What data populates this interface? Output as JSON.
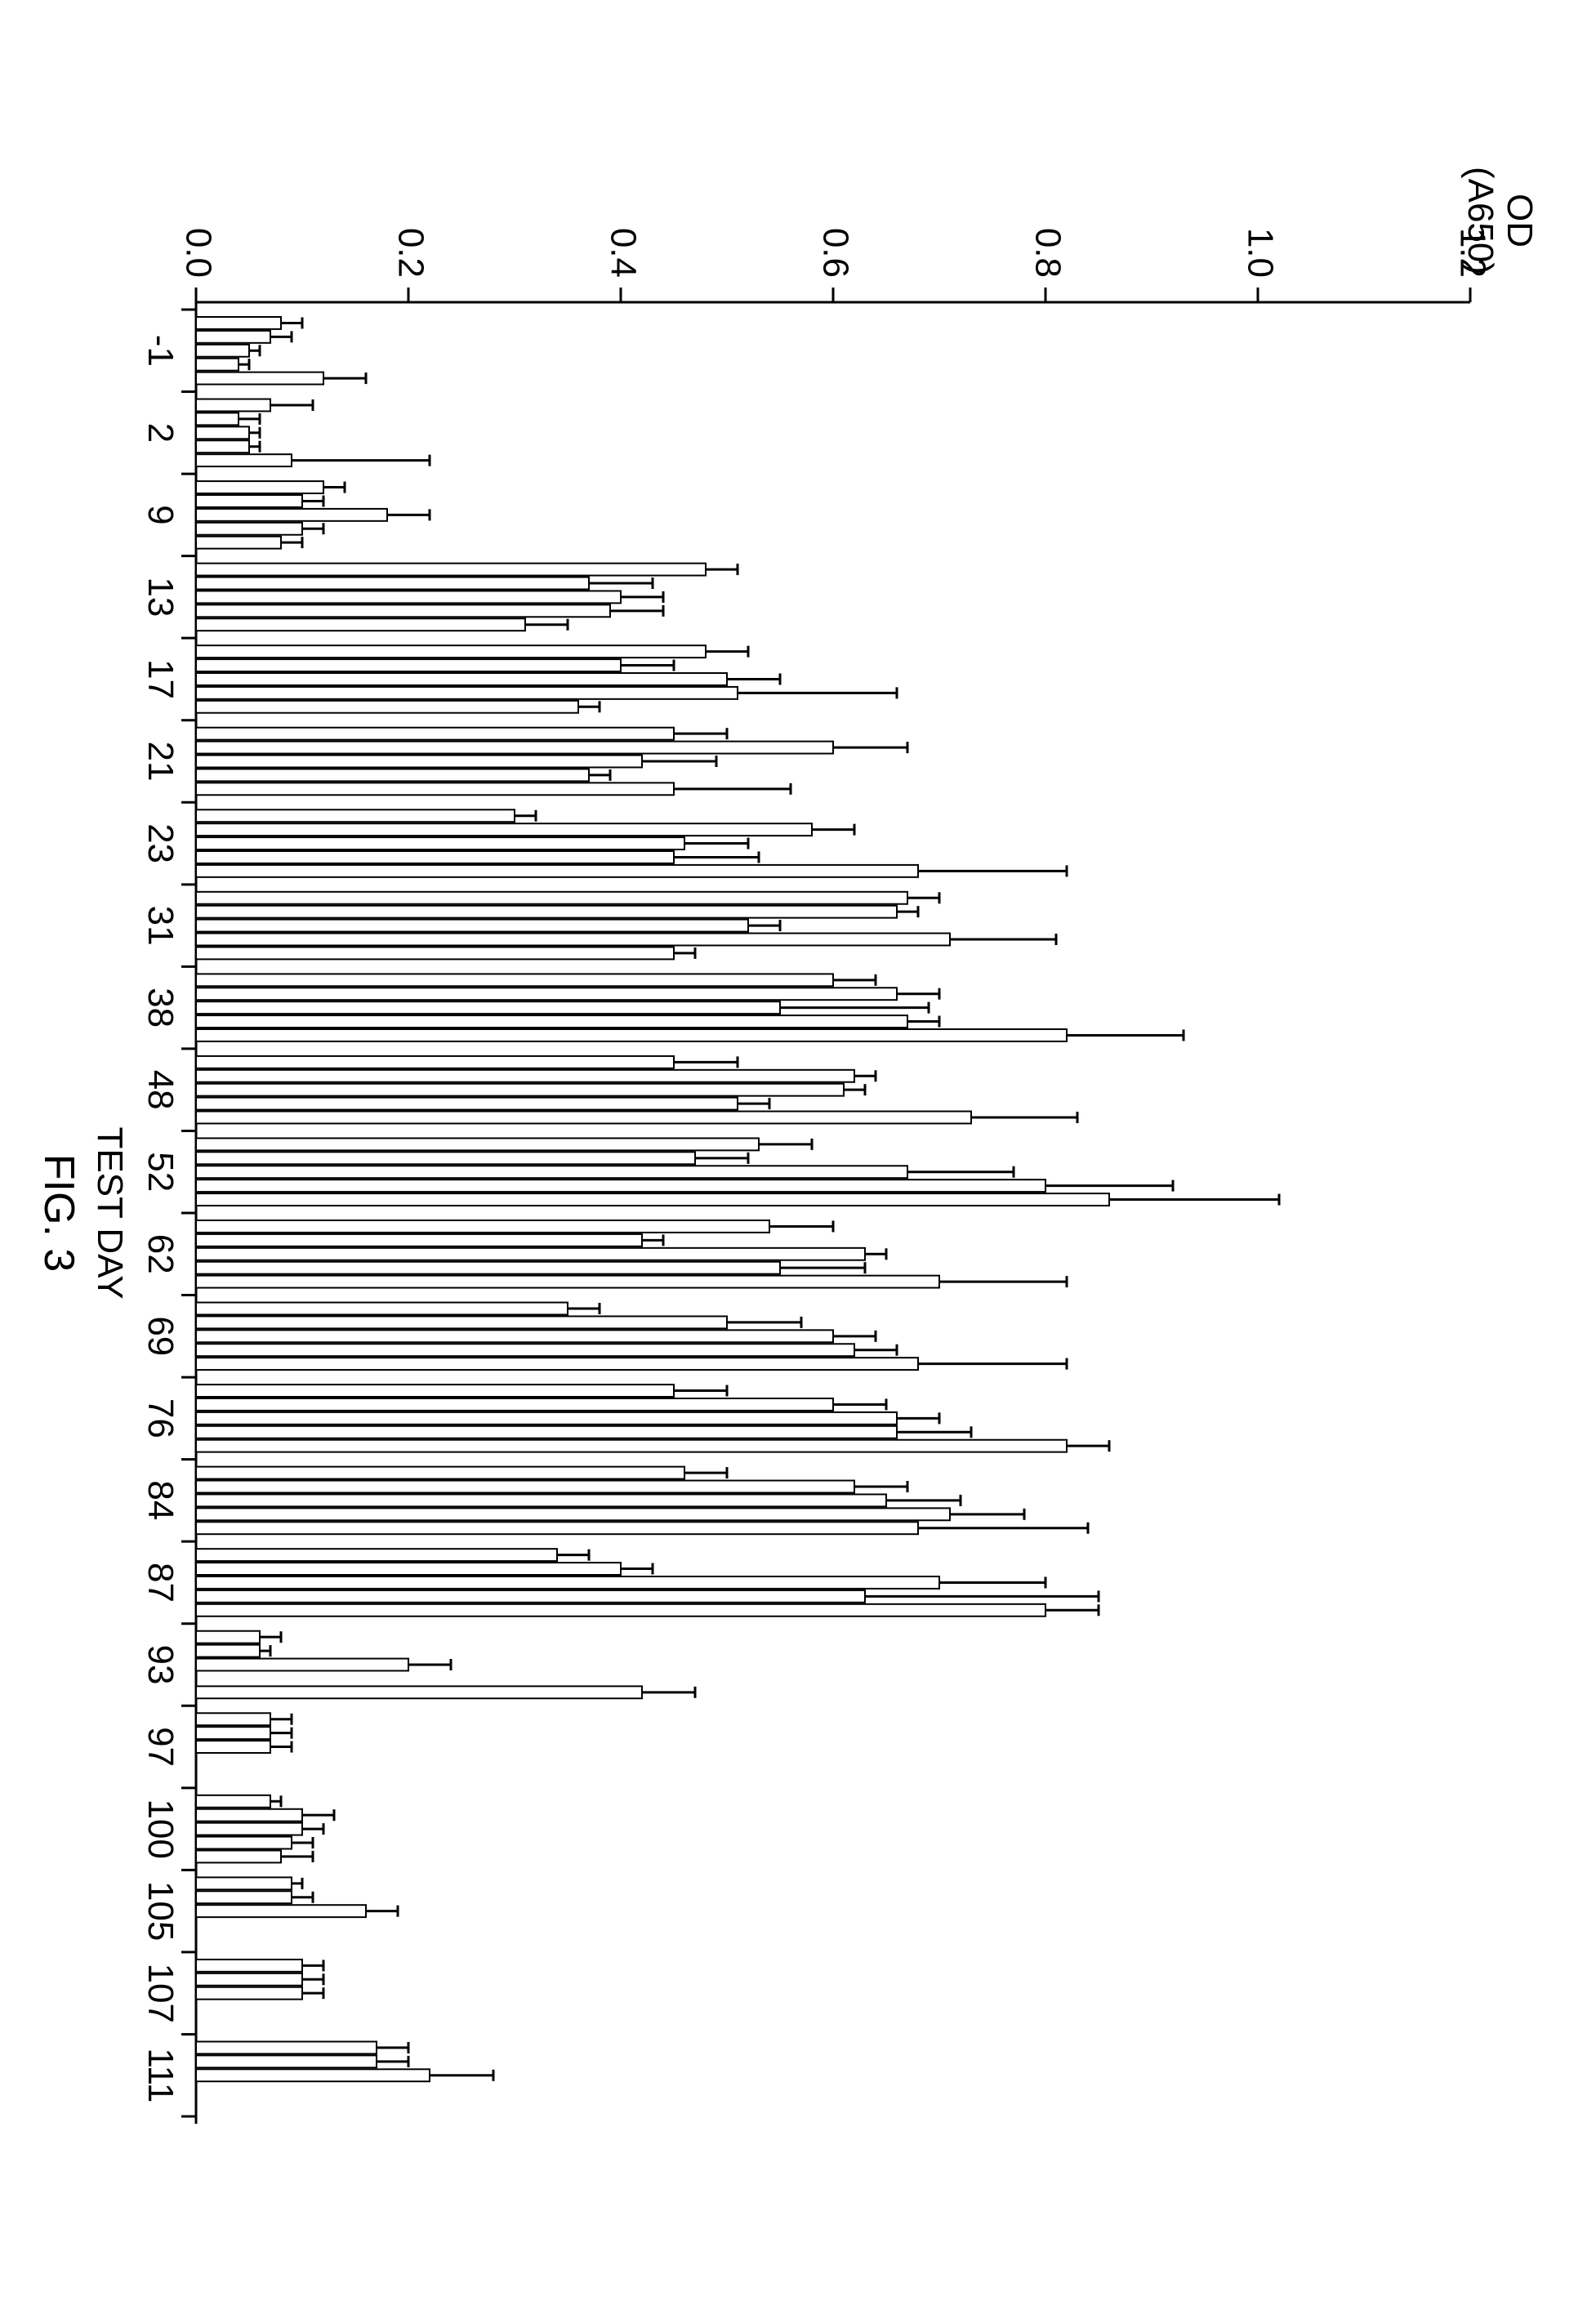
{
  "figure_label": "FIG. 3",
  "chart": {
    "type": "bar",
    "x_axis": {
      "label": "TEST DAY",
      "label_fontsize": 44,
      "tick_fontsize": 44
    },
    "y_axis": {
      "label_lines": [
        "OD",
        "(A650)"
      ],
      "label_fontsize": 44,
      "min": 0.0,
      "max": 1.2,
      "tick_step": 0.2,
      "tick_fontsize": 44,
      "tick_labels": [
        "0.0",
        "0.2",
        "0.4",
        "0.6",
        "0.8",
        "1.0",
        "1.2"
      ]
    },
    "colors": {
      "bar_fill": "#ffffff",
      "bar_stroke": "#000000",
      "axis": "#000000",
      "background": "#ffffff"
    },
    "bar_stroke_width": 2,
    "axis_stroke_width": 3,
    "error_cap_width": 14,
    "bars_per_group": 5,
    "groups": [
      {
        "label": "-1",
        "values": [
          0.08,
          0.07,
          0.05,
          0.04,
          0.12
        ],
        "errors": [
          0.02,
          0.02,
          0.01,
          0.01,
          0.04
        ]
      },
      {
        "label": "2",
        "values": [
          0.07,
          0.04,
          0.05,
          0.05,
          0.09
        ],
        "errors": [
          0.04,
          0.02,
          0.01,
          0.01,
          0.13
        ]
      },
      {
        "label": "9",
        "values": [
          0.12,
          0.1,
          0.18,
          0.1,
          0.08
        ],
        "errors": [
          0.02,
          0.02,
          0.04,
          0.02,
          0.02
        ]
      },
      {
        "label": "13",
        "values": [
          0.48,
          0.37,
          0.4,
          0.39,
          0.31
        ],
        "errors": [
          0.03,
          0.06,
          0.04,
          0.05,
          0.04
        ]
      },
      {
        "label": "17",
        "values": [
          0.48,
          0.4,
          0.5,
          0.51,
          0.36
        ],
        "errors": [
          0.04,
          0.05,
          0.05,
          0.15,
          0.02
        ]
      },
      {
        "label": "21",
        "values": [
          0.45,
          0.6,
          0.42,
          0.37,
          0.45
        ],
        "errors": [
          0.05,
          0.07,
          0.07,
          0.02,
          0.11
        ]
      },
      {
        "label": "23",
        "values": [
          0.3,
          0.58,
          0.46,
          0.45,
          0.68
        ],
        "errors": [
          0.02,
          0.04,
          0.06,
          0.08,
          0.14
        ]
      },
      {
        "label": "31",
        "values": [
          0.67,
          0.66,
          0.52,
          0.71,
          0.45
        ],
        "errors": [
          0.03,
          0.02,
          0.03,
          0.1,
          0.02
        ]
      },
      {
        "label": "38",
        "values": [
          0.6,
          0.66,
          0.55,
          0.67,
          0.82
        ],
        "errors": [
          0.04,
          0.04,
          0.14,
          0.03,
          0.11
        ]
      },
      {
        "label": "48",
        "values": [
          0.45,
          0.62,
          0.61,
          0.51,
          0.73
        ],
        "errors": [
          0.06,
          0.02,
          0.02,
          0.03,
          0.1
        ]
      },
      {
        "label": "52",
        "values": [
          0.53,
          0.47,
          0.67,
          0.8,
          0.86
        ],
        "errors": [
          0.05,
          0.05,
          0.1,
          0.12,
          0.16
        ]
      },
      {
        "label": "62",
        "values": [
          0.54,
          0.42,
          0.63,
          0.55,
          0.7
        ],
        "errors": [
          0.06,
          0.02,
          0.02,
          0.08,
          0.12
        ]
      },
      {
        "label": "69",
        "values": [
          0.35,
          0.5,
          0.6,
          0.62,
          0.68
        ],
        "errors": [
          0.03,
          0.07,
          0.04,
          0.04,
          0.14
        ]
      },
      {
        "label": "76",
        "values": [
          0.45,
          0.6,
          0.66,
          0.66,
          0.82
        ],
        "errors": [
          0.05,
          0.05,
          0.04,
          0.07,
          0.04
        ]
      },
      {
        "label": "84",
        "values": [
          0.46,
          0.62,
          0.65,
          0.71,
          0.68
        ],
        "errors": [
          0.04,
          0.05,
          0.07,
          0.07,
          0.16
        ]
      },
      {
        "label": "87",
        "values": [
          0.34,
          0.4,
          0.7,
          0.63,
          0.8
        ],
        "errors": [
          0.03,
          0.03,
          0.1,
          0.22,
          0.05
        ]
      },
      {
        "label": "93",
        "values": [
          0.06,
          0.06,
          0.2,
          0.0,
          0.42
        ],
        "errors": [
          0.02,
          0.01,
          0.04,
          0.0,
          0.05
        ]
      },
      {
        "label": "97",
        "values": [
          0.07,
          0.07,
          0.07,
          0.0,
          0.0
        ],
        "errors": [
          0.02,
          0.02,
          0.02,
          0.0,
          0.0
        ]
      },
      {
        "label": "100",
        "values": [
          0.07,
          0.1,
          0.1,
          0.09,
          0.08
        ],
        "errors": [
          0.01,
          0.03,
          0.02,
          0.02,
          0.03
        ]
      },
      {
        "label": "105",
        "values": [
          0.09,
          0.09,
          0.16,
          0.0,
          0.0
        ],
        "errors": [
          0.01,
          0.02,
          0.03,
          0.0,
          0.0
        ]
      },
      {
        "label": "107",
        "values": [
          0.1,
          0.1,
          0.1,
          0.0,
          0.0
        ],
        "errors": [
          0.02,
          0.02,
          0.02,
          0.0,
          0.0
        ]
      },
      {
        "label": "111",
        "values": [
          0.17,
          0.17,
          0.22,
          0.0,
          0.0
        ],
        "errors": [
          0.03,
          0.03,
          0.06,
          0.0,
          0.0
        ]
      }
    ]
  }
}
